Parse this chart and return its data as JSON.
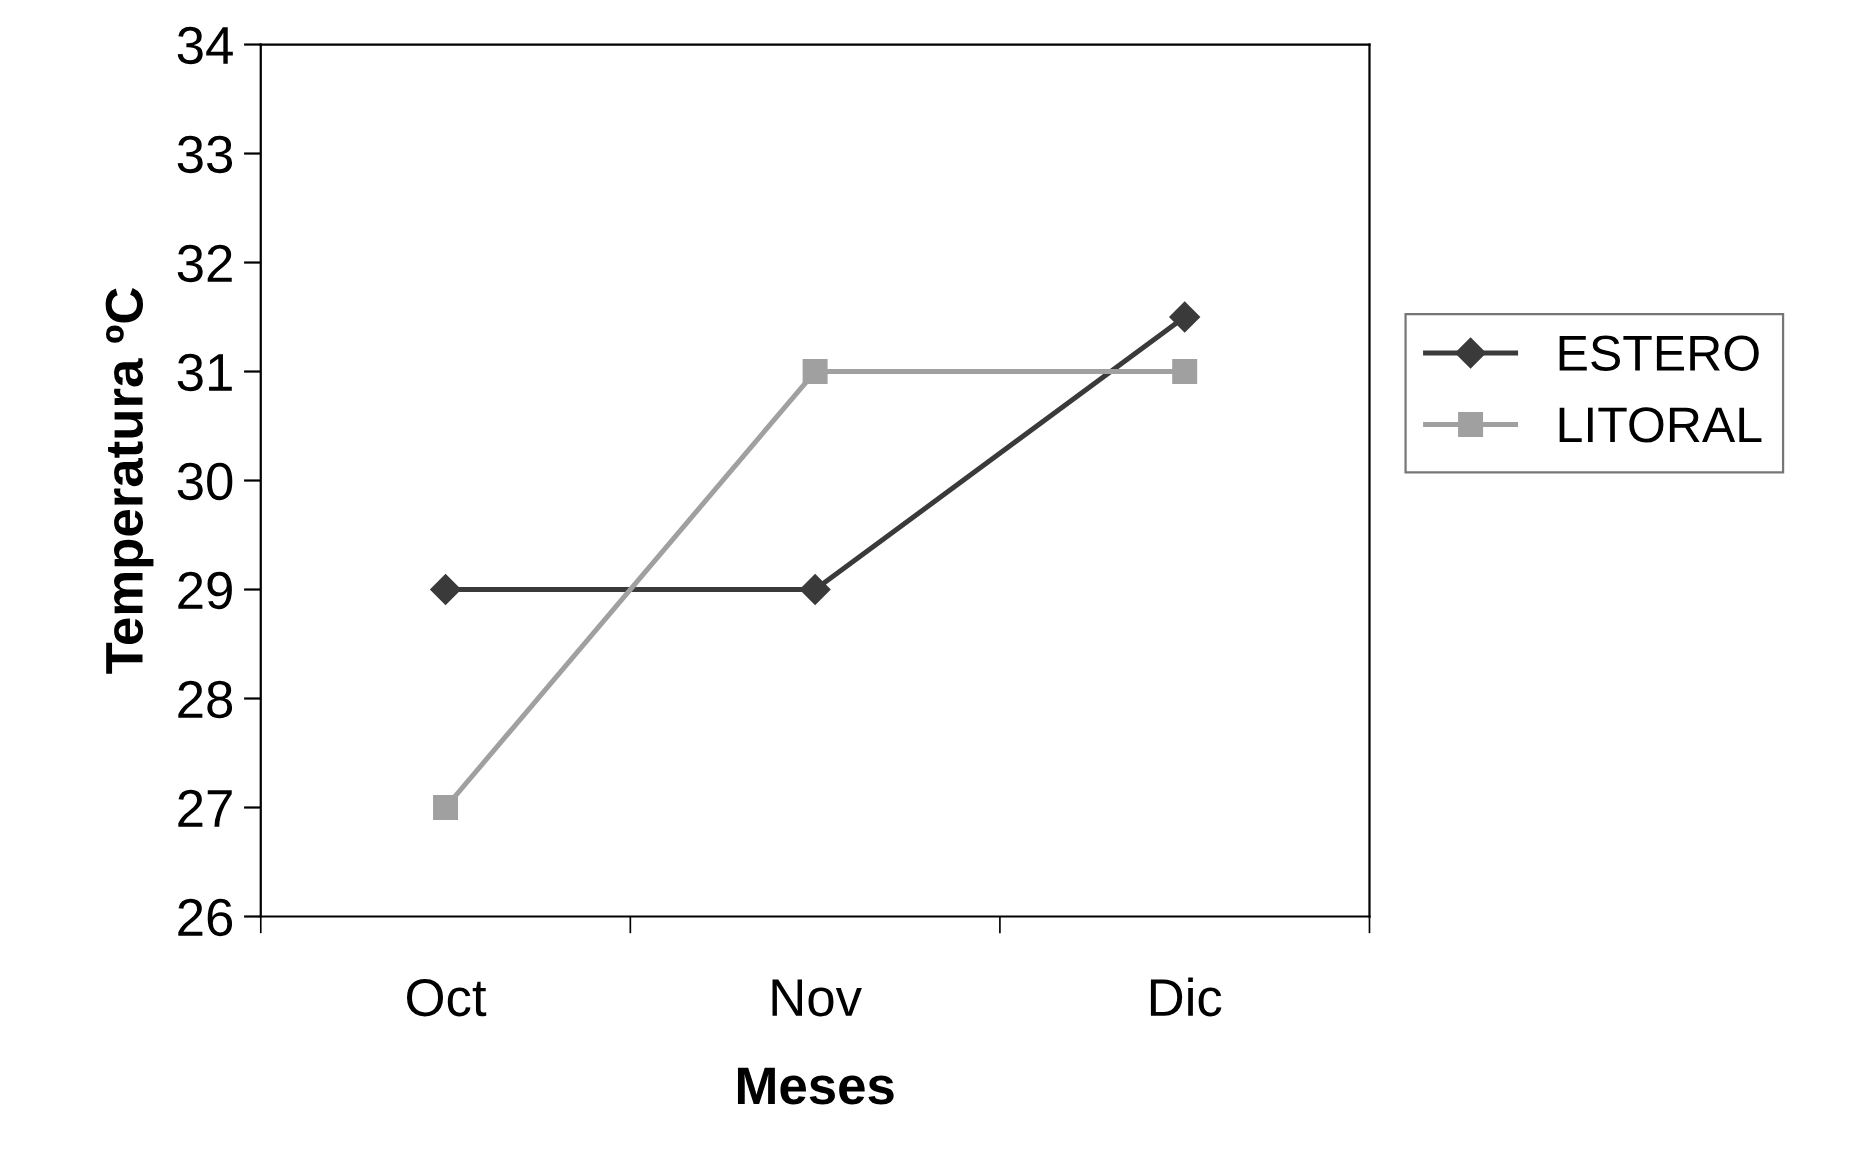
{
  "chart_data": {
    "type": "line",
    "xlabel": "Meses",
    "ylabel": "Temperatura ºC",
    "categories": [
      "Oct",
      "Nov",
      "Dic"
    ],
    "series": [
      {
        "name": "ESTERO",
        "color": "#3a3a3a",
        "marker": "diamond",
        "values": [
          29,
          29,
          31.5
        ]
      },
      {
        "name": "LITORAL",
        "color": "#a0a0a0",
        "marker": "square",
        "values": [
          27,
          31,
          31
        ]
      }
    ],
    "ylim": [
      26,
      34
    ],
    "yticks": [
      26,
      27,
      28,
      29,
      30,
      31,
      32,
      33,
      34
    ],
    "grid": false,
    "legend": "right",
    "line_style": "solid"
  }
}
